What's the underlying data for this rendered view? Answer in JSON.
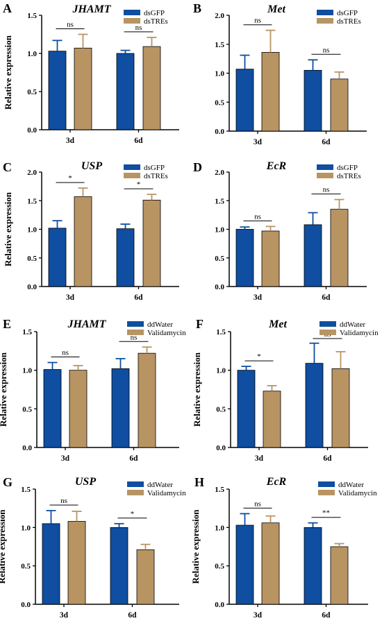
{
  "colors": {
    "control": "#0f4ea0",
    "treatment": "#b89463",
    "axis": "#000000"
  },
  "chart_data": [
    {
      "type": "bar",
      "panel": "A",
      "title": "JHAMT",
      "ylabel": "Relative expression",
      "ylim": [
        0,
        1.5
      ],
      "yticks": [
        "0.0",
        "0.5",
        "1.0",
        "1.5"
      ],
      "categories": [
        "3d",
        "6d"
      ],
      "series": [
        {
          "name": "dsGFP",
          "values": [
            1.03,
            1.0
          ],
          "errors": [
            0.14,
            0.04
          ]
        },
        {
          "name": "dsTREs",
          "values": [
            1.07,
            1.09
          ],
          "errors": [
            0.18,
            0.12
          ]
        }
      ],
      "significance": [
        "ns",
        "ns"
      ]
    },
    {
      "type": "bar",
      "panel": "B",
      "title": "Met",
      "ylabel": "",
      "ylim": [
        0,
        2.0
      ],
      "yticks": [
        "0.0",
        "0.5",
        "1.0",
        "1.5",
        "2.0"
      ],
      "categories": [
        "3d",
        "6d"
      ],
      "series": [
        {
          "name": "dsGFP",
          "values": [
            1.07,
            1.05
          ],
          "errors": [
            0.24,
            0.18
          ]
        },
        {
          "name": "dsTREs",
          "values": [
            1.36,
            0.9
          ],
          "errors": [
            0.38,
            0.12
          ]
        }
      ],
      "significance": [
        "ns",
        "ns"
      ]
    },
    {
      "type": "bar",
      "panel": "C",
      "title": "USP",
      "ylabel": "Relative expression",
      "ylim": [
        0,
        2.0
      ],
      "yticks": [
        "0.0",
        "0.5",
        "1.0",
        "1.5",
        "2.0"
      ],
      "categories": [
        "3d",
        "6d"
      ],
      "series": [
        {
          "name": "dsGFP",
          "values": [
            1.02,
            1.01
          ],
          "errors": [
            0.13,
            0.08
          ]
        },
        {
          "name": "dsTREs",
          "values": [
            1.57,
            1.51
          ],
          "errors": [
            0.15,
            0.1
          ]
        }
      ],
      "significance": [
        "*",
        "*"
      ]
    },
    {
      "type": "bar",
      "panel": "D",
      "title": "EcR",
      "ylabel": "",
      "ylim": [
        0,
        2.0
      ],
      "yticks": [
        "0.0",
        "0.5",
        "1.0",
        "1.5",
        "2.0"
      ],
      "categories": [
        "3d",
        "6d"
      ],
      "series": [
        {
          "name": "dsGFP",
          "values": [
            1.0,
            1.08
          ],
          "errors": [
            0.04,
            0.21
          ]
        },
        {
          "name": "dsTREs",
          "values": [
            0.97,
            1.35
          ],
          "errors": [
            0.08,
            0.17
          ]
        }
      ],
      "significance": [
        "ns",
        "ns"
      ]
    },
    {
      "type": "bar",
      "panel": "E",
      "title": "JHAMT",
      "ylabel": "Relative expression",
      "ylim": [
        0,
        1.5
      ],
      "yticks": [
        "0.0",
        "0.5",
        "1.0",
        "1.5"
      ],
      "categories": [
        "3d",
        "6d"
      ],
      "series": [
        {
          "name": "ddWater",
          "values": [
            1.01,
            1.02
          ],
          "errors": [
            0.09,
            0.13
          ]
        },
        {
          "name": "Validamycin",
          "values": [
            1.0,
            1.22
          ],
          "errors": [
            0.06,
            0.08
          ]
        }
      ],
      "significance": [
        "ns",
        "ns"
      ]
    },
    {
      "type": "bar",
      "panel": "F",
      "title": "Met",
      "ylabel": "Relative expression",
      "ylim": [
        0,
        1.5
      ],
      "yticks": [
        "0.0",
        "0.5",
        "1.0",
        "1.5"
      ],
      "categories": [
        "3d",
        "6d"
      ],
      "series": [
        {
          "name": "ddWater",
          "values": [
            1.0,
            1.09
          ],
          "errors": [
            0.05,
            0.26
          ]
        },
        {
          "name": "Validamycin",
          "values": [
            0.73,
            1.02
          ],
          "errors": [
            0.07,
            0.22
          ]
        }
      ],
      "significance": [
        "*",
        "ns"
      ]
    },
    {
      "type": "bar",
      "panel": "G",
      "title": "USP",
      "ylabel": "Relative expression",
      "ylim": [
        0,
        1.5
      ],
      "yticks": [
        "0.0",
        "0.5",
        "1.0",
        "1.5"
      ],
      "categories": [
        "3d",
        "6d"
      ],
      "series": [
        {
          "name": "ddWater",
          "values": [
            1.05,
            1.0
          ],
          "errors": [
            0.17,
            0.05
          ]
        },
        {
          "name": "Validamycin",
          "values": [
            1.08,
            0.71
          ],
          "errors": [
            0.13,
            0.07
          ]
        }
      ],
      "significance": [
        "ns",
        "*"
      ]
    },
    {
      "type": "bar",
      "panel": "H",
      "title": "EcR",
      "ylabel": "Relative expression",
      "ylim": [
        0,
        1.5
      ],
      "yticks": [
        "0.0",
        "0.5",
        "1.0",
        "1.5"
      ],
      "categories": [
        "3d",
        "6d"
      ],
      "series": [
        {
          "name": "ddWater",
          "values": [
            1.03,
            1.0
          ],
          "errors": [
            0.15,
            0.06
          ]
        },
        {
          "name": "Validamycin",
          "values": [
            1.06,
            0.75
          ],
          "errors": [
            0.09,
            0.04
          ]
        }
      ],
      "significance": [
        "ns",
        "**"
      ]
    }
  ]
}
